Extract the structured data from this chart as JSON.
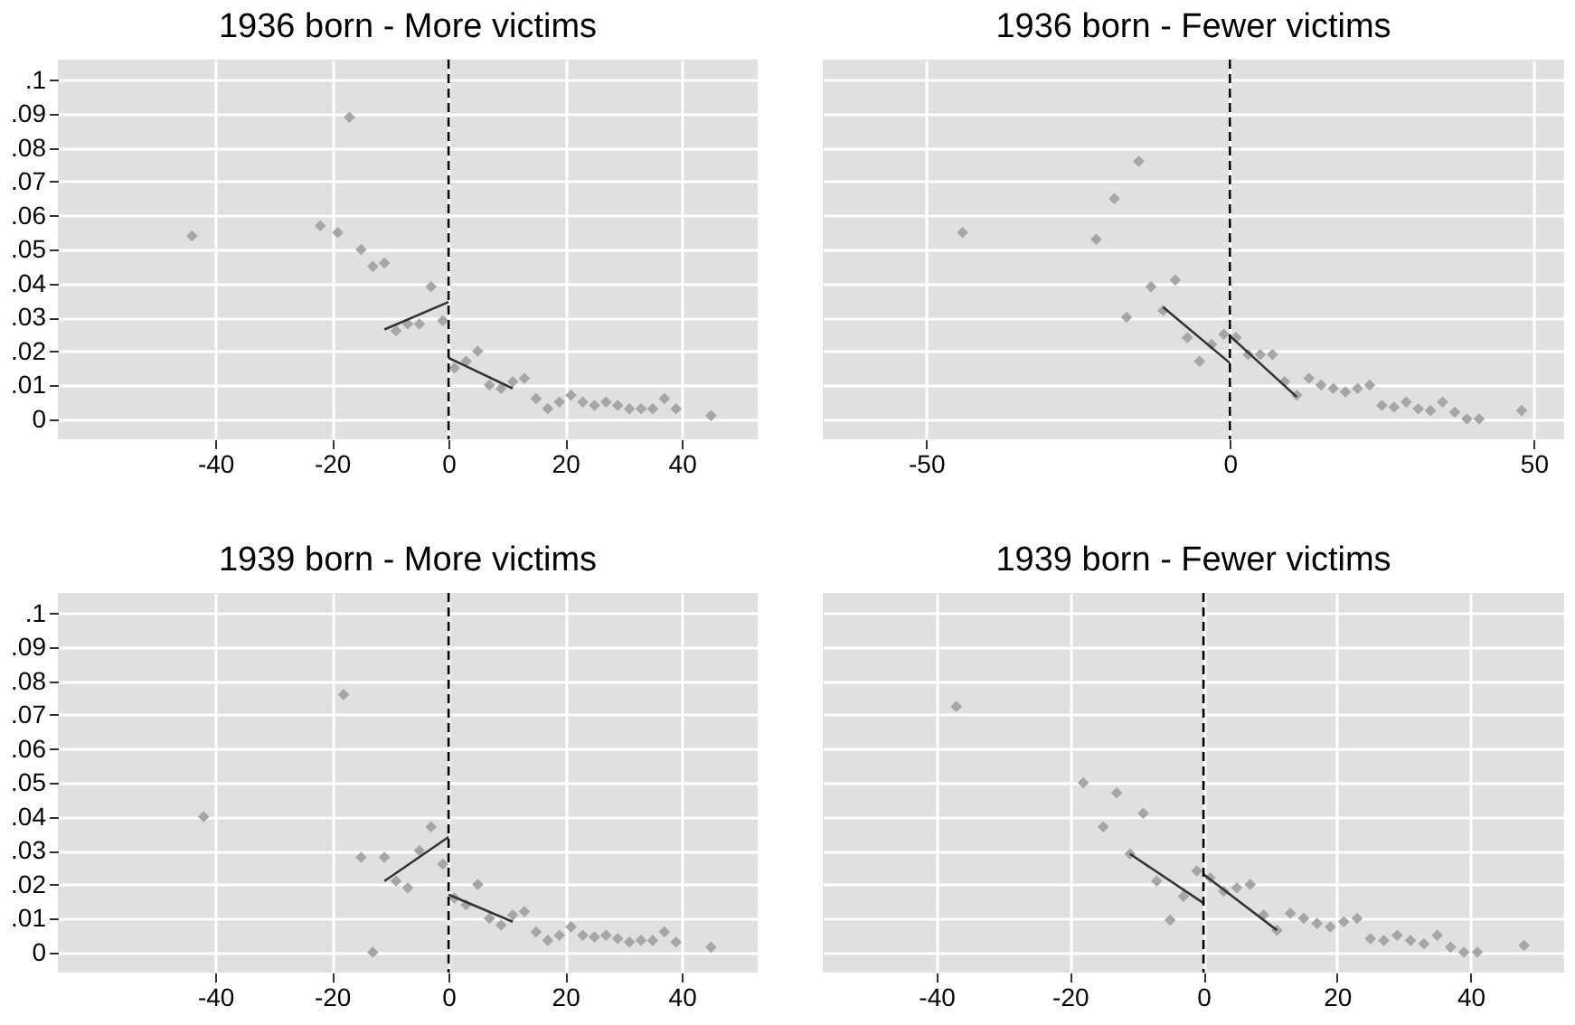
{
  "chart_data": [
    {
      "type": "scatter",
      "title": "1936 born - More victims",
      "xlim": [
        -67,
        53
      ],
      "xticks": [
        -40,
        -20,
        0,
        20,
        40
      ],
      "ylim": [
        -0.006,
        0.106
      ],
      "yticks": [
        0,
        {
          "value": 0.01,
          "label": ".01"
        },
        {
          "value": 0.02,
          "label": ".02"
        },
        {
          "value": 0.03,
          "label": ".03"
        },
        {
          "value": 0.04,
          "label": ".04"
        },
        {
          "value": 0.05,
          "label": ".05"
        },
        {
          "value": 0.06,
          "label": ".06"
        },
        {
          "value": 0.07,
          "label": ".07"
        },
        {
          "value": 0.08,
          "label": ".08"
        },
        {
          "value": 0.09,
          "label": ".09"
        },
        {
          "value": 0.1,
          "label": ".1"
        }
      ],
      "grid": true,
      "marker": "diamond",
      "series": [
        {
          "type": "scatter",
          "color": "#a6a6a6",
          "x": [
            -44,
            -22,
            -19,
            -17,
            -15,
            -13,
            -11,
            -9,
            -7,
            -5,
            -3,
            -1,
            1,
            3,
            5,
            7,
            9,
            11,
            13,
            15,
            17,
            19,
            21,
            23,
            25,
            27,
            29,
            31,
            33,
            35,
            37,
            39,
            45
          ],
          "values": [
            0.054,
            0.057,
            0.055,
            0.089,
            0.05,
            0.045,
            0.046,
            0.026,
            0.028,
            0.028,
            0.039,
            0.029,
            0.015,
            0.017,
            0.02,
            0.01,
            0.009,
            0.011,
            0.012,
            0.006,
            0.003,
            0.005,
            0.007,
            0.005,
            0.004,
            0.005,
            0.004,
            0.003,
            0.003,
            0.003,
            0.006,
            0.003,
            0.001
          ]
        },
        {
          "type": "line",
          "marker": "none",
          "color": "#333333",
          "x": [
            -11,
            0
          ],
          "values": [
            0.0264,
            0.0345
          ]
        },
        {
          "type": "line",
          "marker": "none",
          "color": "#333333",
          "x": [
            0,
            11
          ],
          "values": [
            0.018,
            0.009
          ]
        }
      ],
      "ref_lines": [
        {
          "axis": "x",
          "value": 0,
          "color": "#000000",
          "line_style": "dashed"
        }
      ]
    },
    {
      "type": "scatter",
      "title": "1936 born - Fewer victims",
      "xlim": [
        -67,
        55
      ],
      "xticks": [
        -50,
        0,
        50
      ],
      "ylim": [
        -0.006,
        0.106
      ],
      "yticks": [
        0,
        0.01,
        0.02,
        0.03,
        0.04,
        0.05,
        0.06,
        0.07,
        0.08,
        0.09,
        0.1
      ],
      "grid": true,
      "marker": "diamond",
      "tick_labels": "x",
      "series": [
        {
          "type": "scatter",
          "color": "#a6a6a6",
          "x": [
            -44,
            -22,
            -19,
            -17,
            -15,
            -13,
            -11,
            -9,
            -7,
            -5,
            -3,
            -1,
            1,
            3,
            5,
            7,
            9,
            11,
            13,
            15,
            17,
            19,
            21,
            23,
            25,
            27,
            29,
            31,
            33,
            35,
            37,
            39,
            41,
            48
          ],
          "values": [
            0.055,
            0.053,
            0.065,
            0.03,
            0.076,
            0.039,
            0.032,
            0.041,
            0.024,
            0.017,
            0.022,
            0.025,
            0.024,
            0.019,
            0.019,
            0.019,
            0.011,
            0.007,
            0.012,
            0.01,
            0.009,
            0.008,
            0.009,
            0.01,
            0.004,
            0.0035,
            0.005,
            0.003,
            0.0025,
            0.005,
            0.002,
            0,
            0,
            0.0025
          ]
        },
        {
          "type": "line",
          "marker": "none",
          "color": "#333333",
          "x": [
            -11,
            0
          ],
          "values": [
            0.033,
            0.0165
          ]
        },
        {
          "type": "line",
          "marker": "none",
          "color": "#333333",
          "x": [
            0,
            11
          ],
          "values": [
            0.0245,
            0.0065
          ]
        }
      ],
      "ref_lines": [
        {
          "axis": "x",
          "value": 0,
          "color": "#000000",
          "line_style": "dashed"
        }
      ]
    },
    {
      "type": "scatter",
      "title": "1939 born - More victims",
      "xlim": [
        -67,
        53
      ],
      "xticks": [
        -40,
        -20,
        0,
        20,
        40
      ],
      "ylim": [
        -0.006,
        0.106
      ],
      "yticks": [
        0,
        {
          "value": 0.01,
          "label": ".01"
        },
        {
          "value": 0.02,
          "label": ".02"
        },
        {
          "value": 0.03,
          "label": ".03"
        },
        {
          "value": 0.04,
          "label": ".04"
        },
        {
          "value": 0.05,
          "label": ".05"
        },
        {
          "value": 0.06,
          "label": ".06"
        },
        {
          "value": 0.07,
          "label": ".07"
        },
        {
          "value": 0.08,
          "label": ".08"
        },
        {
          "value": 0.09,
          "label": ".09"
        },
        {
          "value": 0.1,
          "label": ".1"
        }
      ],
      "grid": true,
      "marker": "diamond",
      "series": [
        {
          "type": "scatter",
          "color": "#a6a6a6",
          "x": [
            -42,
            -18,
            -15,
            -13,
            -11,
            -9,
            -7,
            -5,
            -3,
            -1,
            1,
            3,
            5,
            7,
            9,
            11,
            13,
            15,
            17,
            19,
            21,
            23,
            25,
            27,
            29,
            31,
            33,
            35,
            37,
            39,
            45
          ],
          "values": [
            0.04,
            0.076,
            0.028,
            0,
            0.028,
            0.021,
            0.019,
            0.03,
            0.037,
            0.026,
            0.016,
            0.014,
            0.02,
            0.01,
            0.008,
            0.011,
            0.012,
            0.006,
            0.0035,
            0.005,
            0.0075,
            0.005,
            0.0045,
            0.005,
            0.004,
            0.003,
            0.0035,
            0.0035,
            0.006,
            0.003,
            0.0015
          ]
        },
        {
          "type": "line",
          "marker": "none",
          "color": "#333333",
          "x": [
            -11,
            0
          ],
          "values": [
            0.021,
            0.034
          ]
        },
        {
          "type": "line",
          "marker": "none",
          "color": "#333333",
          "x": [
            0,
            11
          ],
          "values": [
            0.017,
            0.009
          ]
        }
      ],
      "ref_lines": [
        {
          "axis": "x",
          "value": 0,
          "color": "#000000",
          "line_style": "dashed"
        }
      ]
    },
    {
      "type": "scatter",
      "title": "1939 born - Fewer victims",
      "xlim": [
        -57,
        54
      ],
      "xticks": [
        -40,
        -20,
        0,
        20,
        40
      ],
      "ylim": [
        -0.006,
        0.106
      ],
      "yticks": [
        0,
        0.01,
        0.02,
        0.03,
        0.04,
        0.05,
        0.06,
        0.07,
        0.08,
        0.09,
        0.1
      ],
      "grid": true,
      "marker": "diamond",
      "tick_labels": "x",
      "series": [
        {
          "type": "scatter",
          "color": "#a6a6a6",
          "x": [
            -37,
            -18,
            -15,
            -13,
            -11,
            -9,
            -7,
            -5,
            -3,
            -1,
            1,
            3,
            5,
            7,
            9,
            11,
            13,
            15,
            17,
            19,
            21,
            23,
            25,
            27,
            29,
            31,
            33,
            35,
            37,
            39,
            41,
            48
          ],
          "values": [
            0.0725,
            0.05,
            0.037,
            0.047,
            0.029,
            0.041,
            0.021,
            0.0095,
            0.0165,
            0.024,
            0.022,
            0.018,
            0.019,
            0.02,
            0.011,
            0.0065,
            0.0115,
            0.01,
            0.0085,
            0.0075,
            0.009,
            0.01,
            0.004,
            0.0035,
            0.005,
            0.0035,
            0.0025,
            0.005,
            0.0015,
            0,
            0,
            0.002
          ]
        },
        {
          "type": "line",
          "marker": "none",
          "color": "#333333",
          "x": [
            -11,
            0
          ],
          "values": [
            0.029,
            0.0145
          ]
        },
        {
          "type": "line",
          "marker": "none",
          "color": "#333333",
          "x": [
            0,
            11
          ],
          "values": [
            0.023,
            0.0065
          ]
        }
      ],
      "ref_lines": [
        {
          "axis": "x",
          "value": 0,
          "color": "#000000",
          "line_style": "dashed"
        }
      ]
    }
  ]
}
